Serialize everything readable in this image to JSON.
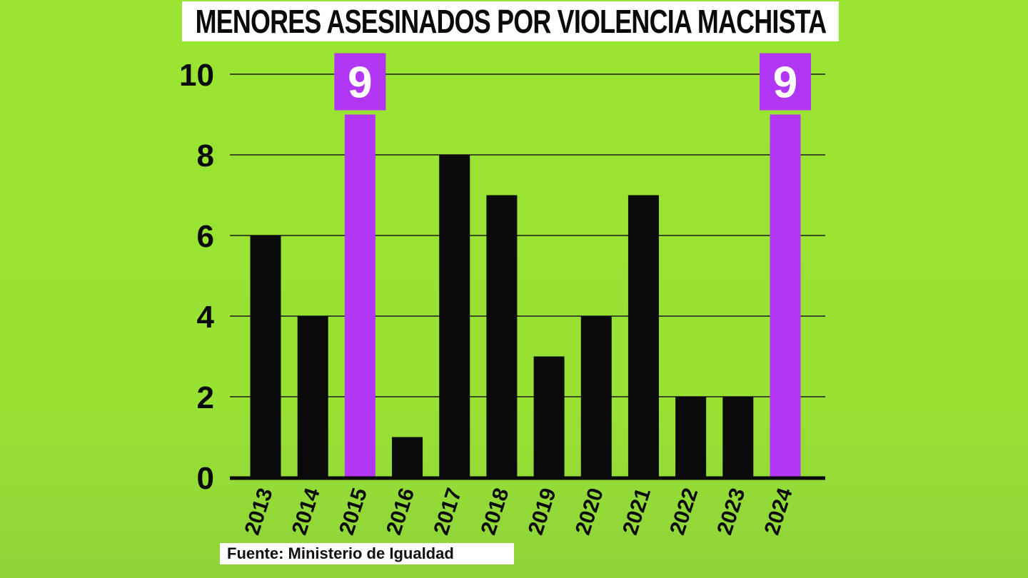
{
  "title": "MENORES ASESINADOS POR VIOLENCIA MACHISTA",
  "source": "Fuente: Ministerio de Igualdad",
  "colors": {
    "background": "#9ae432",
    "bar": "#0a0a0a",
    "highlight": "#b237f5",
    "grid": "#1a1a1a"
  },
  "chart_data": {
    "type": "bar",
    "title": "MENORES ASESINADOS POR VIOLENCIA MACHISTA",
    "xlabel": "",
    "ylabel": "",
    "categories": [
      "2013",
      "2014",
      "2015",
      "2016",
      "2017",
      "2018",
      "2019",
      "2020",
      "2021",
      "2022",
      "2023",
      "2024"
    ],
    "values": [
      6,
      4,
      9,
      1,
      8,
      7,
      3,
      4,
      7,
      2,
      2,
      9
    ],
    "highlighted": [
      "2015",
      "2024"
    ],
    "data_labels": {
      "2015": "9",
      "2024": "9"
    },
    "yticks": [
      "0",
      "2",
      "4",
      "6",
      "8",
      "10"
    ],
    "ylim": [
      0,
      10
    ],
    "grid": true,
    "legend": "none"
  }
}
